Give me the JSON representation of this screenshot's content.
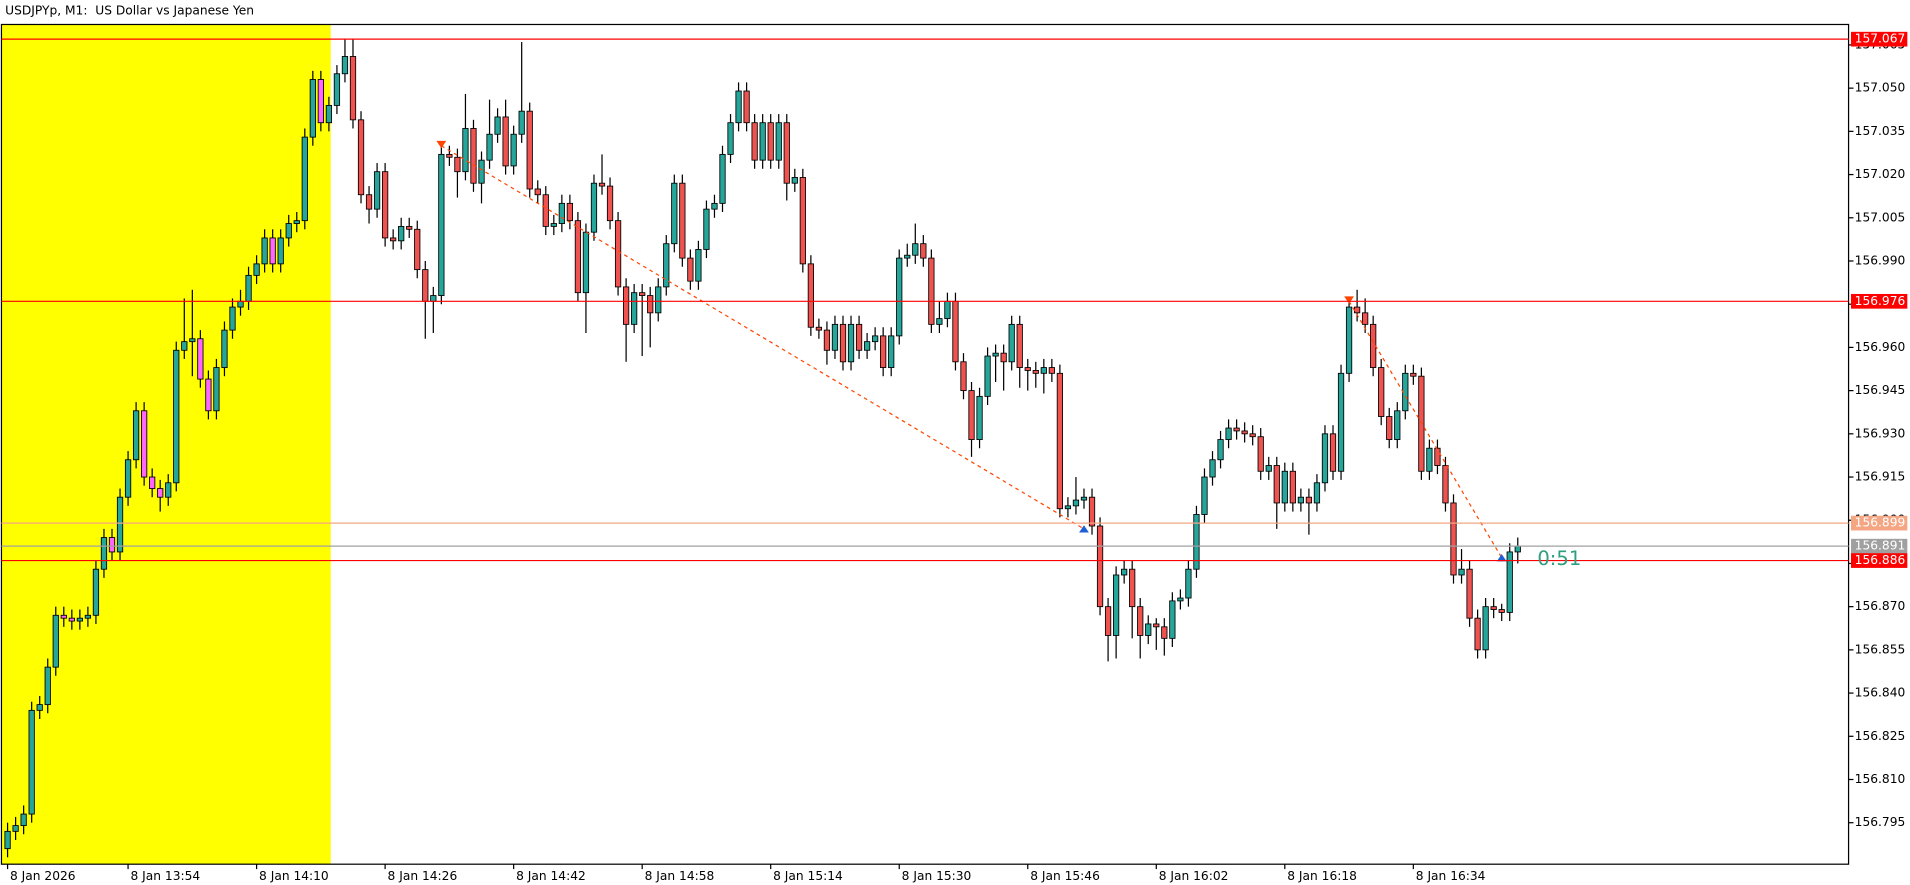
{
  "chart_data": {
    "type": "candlestick",
    "title": "USDJPYp, M1:  US Dollar vs Japanese Yen",
    "categories": [
      "8 Jan 2026",
      null,
      null,
      null,
      null,
      null,
      null,
      null,
      null,
      null,
      null,
      null,
      null,
      null,
      null,
      "8 Jan 13:54",
      null,
      null,
      null,
      null,
      null,
      null,
      null,
      null,
      null,
      null,
      null,
      null,
      null,
      null,
      null,
      "8 Jan 14:10",
      null,
      null,
      null,
      null,
      null,
      null,
      null,
      null,
      null,
      null,
      null,
      null,
      null,
      null,
      null,
      "8 Jan 14:26",
      null,
      null,
      null,
      null,
      null,
      null,
      null,
      null,
      null,
      null,
      null,
      null,
      null,
      null,
      null,
      "8 Jan 14:42",
      null,
      null,
      null,
      null,
      null,
      null,
      null,
      null,
      null,
      null,
      null,
      null,
      null,
      null,
      null,
      "8 Jan 14:58",
      null,
      null,
      null,
      null,
      null,
      null,
      null,
      null,
      null,
      null,
      null,
      null,
      null,
      null,
      null,
      "8 Jan 15:14",
      null,
      null,
      null,
      null,
      null,
      null,
      null,
      null,
      null,
      null,
      null,
      null,
      null,
      null,
      null,
      "8 Jan 15:30",
      null,
      null,
      null,
      null,
      null,
      null,
      null,
      null,
      null,
      null,
      null,
      null,
      null,
      null,
      null,
      "8 Jan 15:46",
      null,
      null,
      null,
      null,
      null,
      null,
      null,
      null,
      null,
      null,
      null,
      null,
      null,
      null,
      null,
      "8 Jan 16:02",
      null,
      null,
      null,
      null,
      null,
      null,
      null,
      null,
      null,
      null,
      null,
      null,
      null,
      null,
      null,
      "8 Jan 16:18",
      null,
      null,
      null,
      null,
      null,
      null,
      null,
      null,
      null,
      null,
      null,
      null,
      null,
      null,
      null,
      "8 Jan 16:34",
      null,
      null,
      null,
      null,
      null,
      null,
      null,
      null,
      null,
      null,
      null,
      null,
      null
    ],
    "open": [
      156.786,
      156.792,
      156.794,
      156.798,
      156.834,
      156.836,
      156.849,
      156.867,
      156.866,
      156.865,
      156.866,
      156.867,
      156.883,
      156.894,
      156.889,
      156.908,
      156.921,
      156.938,
      156.915,
      156.911,
      156.908,
      156.913,
      156.959,
      156.962,
      156.963,
      156.949,
      156.938,
      156.953,
      156.966,
      156.974,
      156.976,
      156.985,
      156.989,
      156.998,
      156.989,
      156.998,
      157.003,
      157.004,
      157.033,
      157.053,
      157.038,
      157.044,
      157.055,
      157.061,
      157.039,
      157.013,
      157.008,
      157.021,
      156.998,
      156.997,
      157.002,
      157.001,
      156.987,
      156.976,
      156.978,
      157.027,
      157.026,
      157.021,
      157.036,
      157.017,
      157.025,
      157.034,
      157.04,
      157.023,
      157.034,
      157.042,
      157.015,
      157.013,
      157.002,
      157.003,
      157.01,
      157.004,
      156.979,
      157.0,
      157.017,
      157.016,
      157.004,
      156.981,
      156.968,
      156.979,
      156.978,
      156.972,
      156.981,
      156.996,
      157.017,
      156.991,
      156.983,
      156.994,
      157.008,
      157.01,
      157.027,
      157.038,
      157.049,
      157.038,
      157.025,
      157.038,
      157.025,
      157.038,
      157.017,
      157.019,
      156.989,
      156.967,
      156.966,
      156.959,
      156.968,
      156.955,
      156.968,
      156.959,
      156.962,
      156.964,
      156.953,
      156.964,
      156.991,
      156.992,
      156.996,
      156.991,
      156.968,
      156.97,
      156.976,
      156.955,
      156.945,
      156.928,
      156.943,
      156.957,
      156.958,
      156.955,
      156.968,
      156.953,
      156.952,
      156.951,
      156.953,
      156.951,
      156.904,
      156.905,
      156.907,
      156.908,
      156.898,
      156.87,
      156.86,
      156.881,
      156.883,
      156.87,
      156.86,
      156.864,
      156.863,
      156.859,
      156.872,
      156.873,
      156.883,
      156.902,
      156.915,
      156.921,
      156.928,
      156.932,
      156.931,
      156.93,
      156.929,
      156.917,
      156.919,
      156.906,
      156.917,
      156.906,
      156.908,
      156.906,
      156.913,
      156.93,
      156.917,
      156.951,
      156.974,
      156.972,
      156.968,
      156.953,
      156.936,
      156.928,
      156.938,
      156.951,
      156.95,
      156.917,
      156.925,
      156.919,
      156.906,
      156.881,
      156.883,
      156.866,
      156.855,
      156.87,
      156.869,
      156.868,
      156.889
    ],
    "high": [
      156.795,
      156.797,
      156.801,
      156.837,
      156.839,
      156.852,
      156.87,
      156.87,
      156.869,
      156.869,
      156.87,
      156.886,
      156.897,
      156.897,
      156.911,
      156.924,
      156.941,
      156.941,
      156.918,
      156.914,
      156.916,
      156.962,
      156.977,
      156.98,
      156.966,
      156.952,
      156.956,
      156.969,
      156.977,
      156.98,
      156.988,
      156.992,
      157.001,
      157.001,
      157.001,
      157.006,
      157.007,
      157.036,
      157.056,
      157.056,
      157.047,
      157.058,
      157.067,
      157.067,
      157.042,
      157.016,
      157.024,
      157.024,
      157.001,
      157.005,
      157.005,
      157.004,
      156.99,
      156.981,
      157.03,
      157.03,
      157.029,
      157.048,
      157.039,
      157.028,
      157.046,
      157.043,
      157.046,
      157.037,
      157.066,
      157.045,
      157.018,
      157.016,
      157.006,
      157.013,
      157.013,
      157.007,
      157.003,
      157.02,
      157.027,
      157.019,
      157.007,
      156.984,
      156.982,
      156.982,
      156.981,
      156.984,
      156.999,
      157.02,
      157.02,
      156.994,
      156.997,
      157.011,
      157.013,
      157.03,
      157.041,
      157.052,
      157.052,
      157.041,
      157.041,
      157.041,
      157.041,
      157.041,
      157.022,
      157.022,
      156.992,
      156.97,
      156.969,
      156.971,
      156.971,
      156.971,
      156.971,
      156.965,
      156.967,
      156.967,
      156.967,
      156.994,
      156.996,
      157.003,
      156.999,
      156.994,
      156.976,
      156.979,
      156.979,
      156.958,
      156.948,
      156.946,
      156.96,
      156.961,
      156.961,
      156.971,
      156.971,
      156.956,
      156.955,
      156.956,
      156.956,
      156.954,
      156.908,
      156.915,
      156.911,
      156.911,
      156.901,
      156.873,
      156.884,
      156.886,
      156.886,
      156.873,
      156.867,
      156.866,
      156.866,
      156.875,
      156.876,
      156.886,
      156.905,
      156.918,
      156.924,
      156.931,
      156.935,
      156.935,
      156.934,
      156.933,
      156.932,
      156.922,
      156.922,
      156.92,
      156.92,
      156.911,
      156.911,
      156.916,
      156.933,
      156.933,
      156.954,
      156.977,
      156.98,
      156.977,
      156.971,
      156.956,
      156.939,
      156.941,
      156.954,
      156.954,
      156.953,
      156.928,
      156.928,
      156.922,
      156.909,
      156.89,
      156.886,
      156.869,
      156.873,
      156.873,
      156.871,
      156.892,
      156.894
    ],
    "low": [
      156.783,
      156.789,
      156.791,
      156.795,
      156.831,
      156.833,
      156.846,
      156.863,
      156.862,
      156.862,
      156.863,
      156.864,
      156.88,
      156.886,
      156.886,
      156.905,
      156.918,
      156.912,
      156.908,
      156.903,
      156.905,
      156.91,
      156.956,
      156.95,
      156.946,
      156.935,
      156.935,
      156.95,
      156.963,
      156.971,
      156.973,
      156.982,
      156.986,
      156.986,
      156.986,
      156.995,
      157.0,
      157.001,
      157.03,
      157.035,
      157.035,
      157.041,
      157.052,
      157.036,
      157.01,
      157.003,
      157.005,
      156.995,
      156.994,
      156.994,
      156.998,
      156.984,
      156.963,
      156.965,
      156.975,
      157.023,
      157.012,
      157.018,
      157.014,
      157.01,
      157.022,
      157.031,
      157.02,
      157.02,
      157.031,
      157.012,
      157.01,
      156.999,
      156.999,
      157.0,
      157.001,
      156.976,
      156.965,
      156.997,
      157.013,
      157.001,
      156.978,
      156.955,
      156.965,
      156.957,
      156.96,
      156.969,
      156.978,
      156.993,
      156.988,
      156.98,
      156.98,
      156.991,
      157.005,
      157.007,
      157.024,
      157.035,
      157.035,
      157.022,
      157.022,
      157.022,
      157.022,
      157.011,
      157.014,
      156.986,
      156.964,
      156.963,
      156.954,
      156.956,
      156.952,
      156.952,
      156.956,
      156.956,
      156.959,
      156.95,
      156.95,
      156.961,
      156.988,
      156.989,
      156.988,
      156.965,
      156.965,
      156.967,
      156.952,
      156.942,
      156.922,
      156.925,
      156.94,
      156.948,
      156.945,
      156.952,
      156.946,
      156.945,
      156.946,
      156.944,
      156.948,
      156.901,
      156.901,
      156.902,
      156.904,
      156.895,
      156.867,
      156.851,
      156.852,
      156.878,
      156.859,
      156.852,
      156.857,
      156.855,
      156.853,
      156.856,
      156.869,
      156.87,
      156.88,
      156.899,
      156.912,
      156.918,
      156.925,
      156.928,
      156.927,
      156.926,
      156.914,
      156.914,
      156.897,
      156.903,
      156.903,
      156.903,
      156.895,
      156.903,
      156.91,
      156.914,
      156.914,
      156.948,
      156.969,
      156.965,
      156.95,
      156.933,
      156.925,
      156.925,
      156.935,
      156.947,
      156.914,
      156.914,
      156.916,
      156.903,
      156.878,
      156.878,
      156.863,
      156.852,
      156.852,
      156.866,
      156.865,
      156.865,
      156.885
    ],
    "close": [
      156.792,
      156.794,
      156.798,
      156.834,
      156.836,
      156.849,
      156.867,
      156.866,
      156.865,
      156.866,
      156.867,
      156.883,
      156.894,
      156.889,
      156.908,
      156.921,
      156.938,
      156.915,
      156.911,
      156.908,
      156.913,
      156.959,
      156.962,
      156.963,
      156.949,
      156.938,
      156.953,
      156.966,
      156.974,
      156.976,
      156.985,
      156.989,
      156.998,
      156.989,
      156.998,
      157.003,
      157.004,
      157.033,
      157.053,
      157.038,
      157.044,
      157.055,
      157.061,
      157.039,
      157.013,
      157.008,
      157.021,
      156.998,
      156.997,
      157.002,
      157.001,
      156.987,
      156.976,
      156.978,
      157.027,
      157.026,
      157.021,
      157.036,
      157.017,
      157.025,
      157.034,
      157.04,
      157.023,
      157.034,
      157.042,
      157.015,
      157.013,
      157.002,
      157.003,
      157.01,
      157.004,
      156.979,
      157.0,
      157.017,
      157.016,
      157.004,
      156.981,
      156.968,
      156.979,
      156.978,
      156.972,
      156.981,
      156.996,
      157.017,
      156.991,
      156.983,
      156.994,
      157.008,
      157.01,
      157.027,
      157.038,
      157.049,
      157.038,
      157.025,
      157.038,
      157.025,
      157.038,
      157.017,
      157.019,
      156.989,
      156.967,
      156.966,
      156.959,
      156.968,
      156.955,
      156.968,
      156.959,
      156.962,
      156.964,
      156.953,
      156.964,
      156.991,
      156.992,
      156.996,
      156.991,
      156.968,
      156.97,
      156.976,
      156.955,
      156.945,
      156.928,
      156.943,
      156.957,
      156.958,
      156.955,
      156.968,
      156.953,
      156.952,
      156.951,
      156.953,
      156.951,
      156.904,
      156.905,
      156.907,
      156.908,
      156.898,
      156.87,
      156.86,
      156.881,
      156.883,
      156.87,
      156.86,
      156.864,
      156.863,
      156.859,
      156.872,
      156.873,
      156.883,
      156.902,
      156.915,
      156.921,
      156.928,
      156.932,
      156.931,
      156.93,
      156.929,
      156.917,
      156.919,
      156.906,
      156.917,
      156.906,
      156.908,
      156.906,
      156.913,
      156.93,
      156.917,
      156.951,
      156.974,
      156.972,
      156.968,
      156.953,
      156.936,
      156.928,
      156.938,
      156.951,
      156.95,
      156.917,
      156.925,
      156.919,
      156.906,
      156.881,
      156.883,
      156.866,
      156.855,
      156.87,
      156.869,
      156.868,
      156.889,
      156.891
    ],
    "up_color": "#26a69a",
    "down_color": "#ef5350",
    "highlight_down_color": "#ff66ff",
    "ylim": [
      156.7806,
      157.0721
    ],
    "yticks": [
      157.065,
      {
        "value": 157.05,
        "label": "157.050"
      },
      157.035,
      {
        "value": 157.02,
        "label": "157.020"
      },
      157.005,
      {
        "value": 156.99,
        "label": "156.990"
      },
      156.975,
      {
        "value": 156.96,
        "label": "156.960"
      },
      156.945,
      {
        "value": 156.93,
        "label": "156.930"
      },
      156.915,
      {
        "value": 156.9,
        "label": "156.900"
      },
      156.885,
      {
        "value": 156.87,
        "label": "156.870"
      },
      156.855,
      {
        "value": 156.84,
        "label": "156.840"
      },
      156.825,
      {
        "value": 156.81,
        "label": "156.810"
      },
      156.795
    ],
    "levels": [
      {
        "value": 157.067,
        "color": "#ff0000"
      },
      {
        "value": 156.976,
        "color": "#ff0000"
      },
      {
        "value": 156.899,
        "color": "#f4a582"
      },
      {
        "value": 156.891,
        "color": "#a0a0a0"
      },
      {
        "value": 156.886,
        "color": "#ff0000"
      }
    ],
    "trades": [
      {
        "entry_index": 54,
        "entry_price": 157.03,
        "exit_index": 134,
        "exit_price": 156.897
      },
      {
        "entry_index": 167,
        "entry_price": 156.976,
        "exit_index": 186,
        "exit_price": 156.887
      }
    ],
    "trade_color": "#ff4500",
    "countdown": "0:51",
    "countdown_color": "#2e9e7e"
  }
}
